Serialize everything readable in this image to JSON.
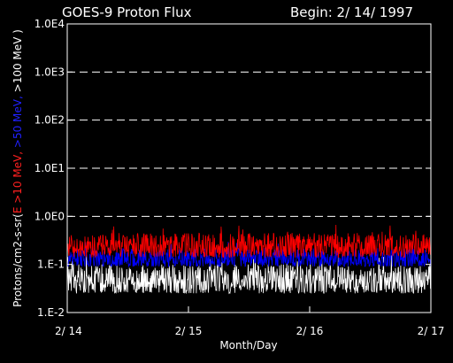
{
  "chart_data": {
    "type": "line",
    "title": "GOES-9 Proton Flux",
    "begin_label": "Begin: 2/ 14/ 1997",
    "xlabel": "Month/Day",
    "ylabel_parts": [
      {
        "text": "Protons/cm2-s-sr(",
        "color": "#ffffff"
      },
      {
        "text": "E >10 MeV, ",
        "color": "#ff2020"
      },
      {
        "text": ">50 MeV, ",
        "color": "#2020ff"
      },
      {
        "text": ">100 MeV )",
        "color": "#ffffff"
      }
    ],
    "y_scale": "log",
    "ylim": [
      0.01,
      10000
    ],
    "y_ticks": [
      {
        "value": 0.01,
        "label": "1.E-2"
      },
      {
        "value": 0.1,
        "label": "1.E-1"
      },
      {
        "value": 1,
        "label": "1.0E0"
      },
      {
        "value": 10,
        "label": "1.0E1"
      },
      {
        "value": 100,
        "label": "1.0E2"
      },
      {
        "value": 1000,
        "label": "1.0E3"
      },
      {
        "value": 10000,
        "label": "1.0E4"
      }
    ],
    "dashed_gridlines_at": [
      1,
      10,
      100,
      1000
    ],
    "x_range_days": [
      "2/14",
      "2/17"
    ],
    "x_ticks": [
      "2/ 14",
      "2/ 15",
      "2/ 16",
      "2/ 17"
    ],
    "series": [
      {
        "name": ">10 MeV",
        "color": "#ff0000",
        "typical_min": 0.14,
        "typical_max": 0.45
      },
      {
        "name": ">50 MeV",
        "color": "#0000ff",
        "typical_min": 0.09,
        "typical_max": 0.22
      },
      {
        "name": ">100 MeV",
        "color": "#ffffff",
        "typical_min": 0.025,
        "typical_max": 0.1
      }
    ],
    "grid": "dashed horizontal only",
    "legend": "none"
  }
}
